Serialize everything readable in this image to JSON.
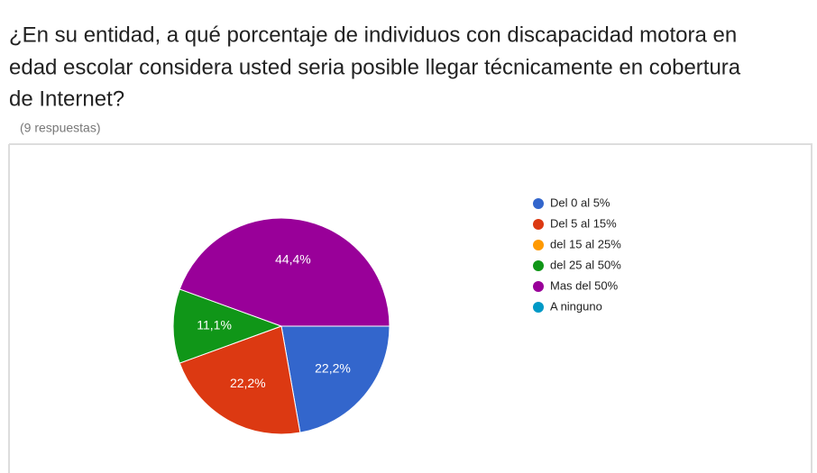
{
  "chart_data": {
    "type": "pie",
    "title": [
      "¿En su entidad, a qué porcentaje de individuos con discapacidad motora en",
      "edad escolar considera usted seria posible llegar técnicamente en cobertura",
      "de Internet?"
    ],
    "subtitle": "(9 respuestas)",
    "categories": [
      "Del 0 al 5%",
      "Del 5 al 15%",
      "del 15 al 25%",
      "del 25 al 50%",
      "Mas del 50%",
      "A ninguno"
    ],
    "values": [
      22.2,
      22.2,
      0,
      11.1,
      44.4,
      0
    ],
    "value_labels": [
      "22,2%",
      "22,2%",
      null,
      "11,1%",
      "44,4%",
      null
    ],
    "colors": [
      "#3366cc",
      "#dc3912",
      "#ff9900",
      "#109618",
      "#990099",
      "#0099c6"
    ],
    "legend": "right"
  }
}
